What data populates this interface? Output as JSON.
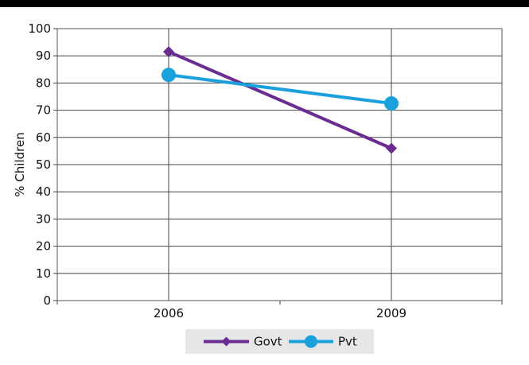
{
  "chart_data": {
    "type": "line",
    "title": "",
    "xlabel": "",
    "ylabel": "% Children",
    "categories": [
      "2006",
      "2009"
    ],
    "ylim": [
      0,
      100
    ],
    "yticks": [
      0,
      10,
      20,
      30,
      40,
      50,
      60,
      70,
      80,
      90,
      100
    ],
    "grid": "horizontal and vertical",
    "legend": "bottom",
    "series": [
      {
        "name": "Govt",
        "values": [
          91.5,
          56
        ],
        "color": "#6a2c91",
        "marker": "diamond"
      },
      {
        "name": "Pvt",
        "values": [
          83,
          72.5
        ],
        "color": "#1aa1dc",
        "marker": "circle"
      }
    ]
  }
}
